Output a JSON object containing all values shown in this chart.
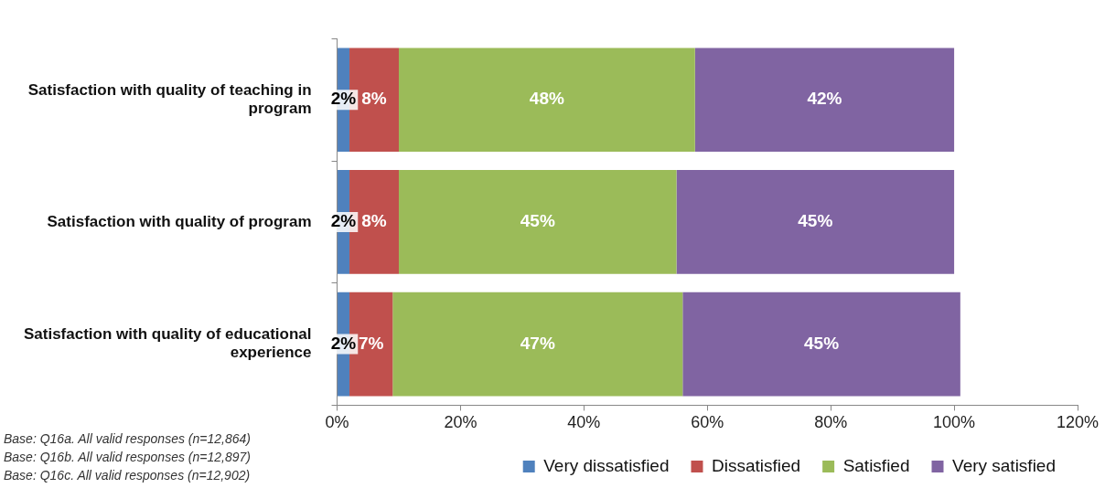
{
  "chart_data": {
    "type": "bar",
    "orientation": "horizontal",
    "stacked": true,
    "categories": [
      "Satisfaction with quality of teaching in program",
      "Satisfaction with quality of program",
      "Satisfaction with quality of educational experience"
    ],
    "series": [
      {
        "name": "Very dissatisfied",
        "color": "#4f81bd",
        "values": [
          2,
          2,
          2
        ],
        "value_labels": [
          "2%",
          "2%",
          "2%"
        ]
      },
      {
        "name": "Dissatisfied",
        "color": "#c0504d",
        "values": [
          8,
          8,
          7
        ],
        "value_labels": [
          "8%",
          "8%",
          "7%"
        ]
      },
      {
        "name": "Satisfied",
        "color": "#9bbb59",
        "values": [
          48,
          45,
          47
        ],
        "value_labels": [
          "48%",
          "45%",
          "47%"
        ]
      },
      {
        "name": "Very satisfied",
        "color": "#8064a2",
        "values": [
          42,
          45,
          45
        ],
        "value_labels": [
          "42%",
          "45%",
          "45%"
        ]
      }
    ],
    "xlim": [
      0,
      120
    ],
    "xticks": [
      {
        "value": 0,
        "label": "0%"
      },
      {
        "value": 20,
        "label": "20%"
      },
      {
        "value": 40,
        "label": "40%"
      },
      {
        "value": 60,
        "label": "60%"
      },
      {
        "value": 80,
        "label": "80%"
      },
      {
        "value": 100,
        "label": "100%"
      },
      {
        "value": 120,
        "label": "120%"
      }
    ],
    "legend": "bottom",
    "annotations": [
      "Base: Q16a. All valid responses (n=12,864)",
      "Base: Q16b. All valid responses (n=12,897)",
      "Base: Q16c. All valid responses (n=12,902)"
    ]
  }
}
